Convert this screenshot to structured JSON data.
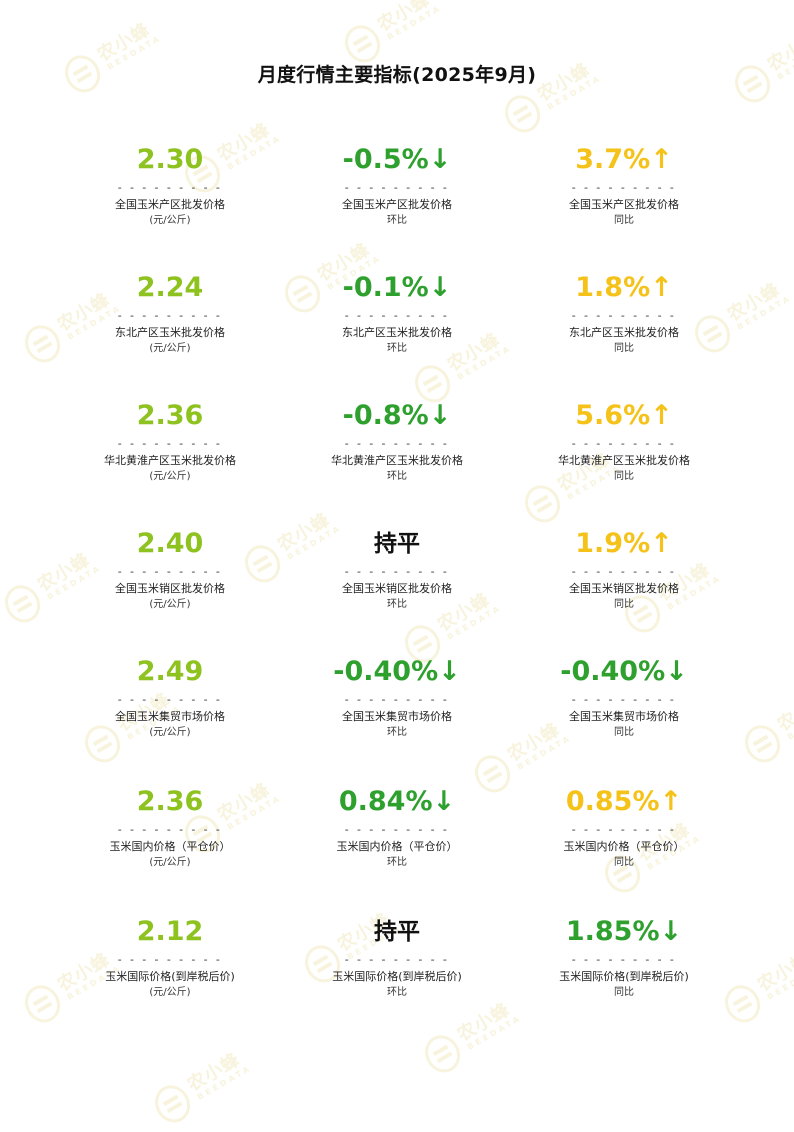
{
  "page": {
    "title": "月度行情主要指标(2025年9月)",
    "watermark": {
      "text": "农小蜂",
      "sub": "BEEDATA",
      "icon": "bee-logo-icon",
      "color": "#c9a800"
    },
    "dashes": "- - - - - - - - -"
  },
  "colors": {
    "value": "#8dc21f",
    "down": "#2ea02e",
    "up": "#f5c21a",
    "flat": "#111111"
  },
  "rows": [
    [
      {
        "value": "2.30",
        "tone": "value",
        "label": "全国玉米产区批发价格",
        "sub": "(元/公斤)"
      },
      {
        "value": "-0.5%↓",
        "tone": "down",
        "label": "全国玉米产区批发价格",
        "sub": "环比"
      },
      {
        "value": "3.7%↑",
        "tone": "up",
        "label": "全国玉米产区批发价格",
        "sub": "同比"
      }
    ],
    [
      {
        "value": "2.24",
        "tone": "value",
        "label": "东北产区玉米批发价格",
        "sub": "(元/公斤)"
      },
      {
        "value": "-0.1%↓",
        "tone": "down",
        "label": "东北产区玉米批发价格",
        "sub": "环比"
      },
      {
        "value": "1.8%↑",
        "tone": "up",
        "label": "东北产区玉米批发价格",
        "sub": "同比"
      }
    ],
    [
      {
        "value": "2.36",
        "tone": "value",
        "label": "华北黄淮产区玉米批发价格",
        "sub": "(元/公斤)"
      },
      {
        "value": "-0.8%↓",
        "tone": "down",
        "label": "华北黄淮产区玉米批发价格",
        "sub": "环比"
      },
      {
        "value": "5.6%↑",
        "tone": "up",
        "label": "华北黄淮产区玉米批发价格",
        "sub": "同比"
      }
    ],
    [
      {
        "value": "2.40",
        "tone": "value",
        "label": "全国玉米销区批发价格",
        "sub": "(元/公斤)"
      },
      {
        "value": "持平",
        "tone": "flat",
        "label": "全国玉米销区批发价格",
        "sub": "环比"
      },
      {
        "value": "1.9%↑",
        "tone": "up",
        "label": "全国玉米销区批发价格",
        "sub": "同比"
      }
    ],
    [
      {
        "value": "2.49",
        "tone": "value",
        "label": "全国玉米集贸市场价格",
        "sub": "(元/公斤)"
      },
      {
        "value": "-0.40%↓",
        "tone": "down",
        "label": "全国玉米集贸市场价格",
        "sub": "环比"
      },
      {
        "value": "-0.40%↓",
        "tone": "down",
        "label": "全国玉米集贸市场价格",
        "sub": "同比"
      }
    ],
    [
      {
        "value": "2.36",
        "tone": "value",
        "label": "玉米国内价格（平仓价）",
        "sub": "(元/公斤)"
      },
      {
        "value": "0.84%↓",
        "tone": "down",
        "label": "玉米国内价格（平仓价）",
        "sub": "环比"
      },
      {
        "value": "0.85%↑",
        "tone": "up",
        "label": "玉米国内价格（平仓价）",
        "sub": "同比"
      }
    ],
    [
      {
        "value": "2.12",
        "tone": "value",
        "label": "玉米国际价格(到岸税后价)",
        "sub": "(元/公斤)"
      },
      {
        "value": "持平",
        "tone": "flat",
        "label": "玉米国际价格(到岸税后价)",
        "sub": "环比"
      },
      {
        "value": "1.85%↓",
        "tone": "down",
        "label": "玉米国际价格(到岸税后价)",
        "sub": "同比"
      }
    ]
  ]
}
